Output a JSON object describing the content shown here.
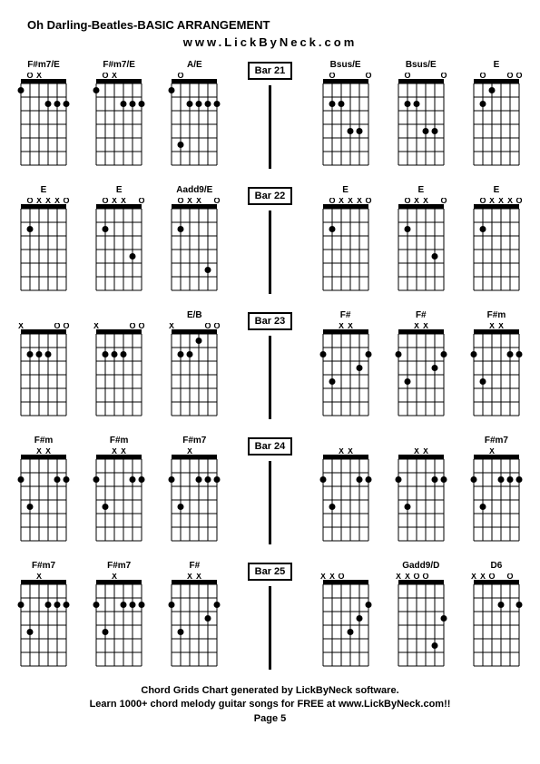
{
  "title": "Oh Darling-Beatles-BASIC ARRANGEMENT",
  "url": "www.LickByNeck.com",
  "footer": {
    "line1": "Chord Grids Chart generated by LickByNeck software.",
    "line2": "Learn 1000+ chord melody guitar songs for FREE at www.LickByNeck.com!!",
    "page": "Page 5"
  },
  "grid_style": {
    "width": 50,
    "height": 90,
    "strings": 6,
    "frets": 6,
    "string_spacing": 10,
    "fret_spacing": 15,
    "nut_thickness": 5,
    "line_color": "#000000",
    "dot_radius": 3.5,
    "marker_fontsize": 9
  },
  "rows": [
    {
      "bar": "Bar 21",
      "left": [
        {
          "name": "F#m7/E",
          "markers": [
            "",
            "O",
            "X",
            "",
            "",
            ""
          ],
          "dots": [
            [
              1,
              6
            ],
            [
              2,
              1
            ],
            [
              2,
              2
            ],
            [
              2,
              3
            ]
          ]
        },
        {
          "name": "F#m7/E",
          "markers": [
            "",
            "O",
            "X",
            "",
            "",
            ""
          ],
          "dots": [
            [
              1,
              6
            ],
            [
              2,
              1
            ],
            [
              2,
              2
            ],
            [
              2,
              3
            ]
          ]
        },
        {
          "name": "A/E",
          "markers": [
            "",
            "O",
            "",
            "",
            "",
            ""
          ],
          "dots": [
            [
              1,
              6
            ],
            [
              2,
              1
            ],
            [
              2,
              2
            ],
            [
              2,
              3
            ],
            [
              2,
              4
            ],
            [
              5,
              5
            ]
          ]
        }
      ],
      "right": [
        {
          "name": "Bsus/E",
          "markers": [
            "",
            "O",
            "",
            "",
            "",
            "O"
          ],
          "dots": [
            [
              2,
              5
            ],
            [
              2,
              4
            ],
            [
              4,
              3
            ],
            [
              4,
              2
            ]
          ]
        },
        {
          "name": "Bsus/E",
          "markers": [
            "",
            "O",
            "",
            "",
            "",
            "O"
          ],
          "dots": [
            [
              2,
              5
            ],
            [
              2,
              4
            ],
            [
              4,
              3
            ],
            [
              4,
              2
            ]
          ]
        },
        {
          "name": "E",
          "markers": [
            "",
            "O",
            "",
            "",
            "O",
            "O"
          ],
          "dots": [
            [
              1,
              4
            ],
            [
              2,
              5
            ]
          ]
        }
      ]
    },
    {
      "bar": "Bar 22",
      "left": [
        {
          "name": "E",
          "markers": [
            "",
            "O",
            "X",
            "X",
            "X",
            "O"
          ],
          "dots": [
            [
              2,
              5
            ]
          ]
        },
        {
          "name": "E",
          "markers": [
            "",
            "O",
            "X",
            "X",
            "",
            "O"
          ],
          "dots": [
            [
              2,
              5
            ],
            [
              4,
              2
            ]
          ]
        },
        {
          "name": "Aadd9/E",
          "markers": [
            "",
            "O",
            "X",
            "X",
            "",
            "O"
          ],
          "dots": [
            [
              2,
              5
            ],
            [
              5,
              2
            ]
          ]
        }
      ],
      "right": [
        {
          "name": "E",
          "markers": [
            "",
            "O",
            "X",
            "X",
            "X",
            "O"
          ],
          "dots": [
            [
              2,
              5
            ]
          ]
        },
        {
          "name": "E",
          "markers": [
            "",
            "O",
            "X",
            "X",
            "",
            "O"
          ],
          "dots": [
            [
              2,
              5
            ],
            [
              4,
              2
            ]
          ]
        },
        {
          "name": "E",
          "markers": [
            "",
            "O",
            "X",
            "X",
            "X",
            "O"
          ],
          "dots": [
            [
              2,
              5
            ]
          ]
        }
      ]
    },
    {
      "bar": "Bar 23",
      "left": [
        {
          "name": "",
          "markers": [
            "X",
            "",
            "",
            "",
            "O",
            "O"
          ],
          "dots": [
            [
              2,
              3
            ],
            [
              2,
              4
            ],
            [
              2,
              5
            ]
          ]
        },
        {
          "name": "",
          "markers": [
            "X",
            "",
            "",
            "",
            "O",
            "O"
          ],
          "dots": [
            [
              2,
              3
            ],
            [
              2,
              4
            ],
            [
              2,
              5
            ]
          ]
        },
        {
          "name": "E/B",
          "markers": [
            "X",
            "",
            "",
            "",
            "O",
            "O"
          ],
          "dots": [
            [
              1,
              3
            ],
            [
              2,
              4
            ],
            [
              2,
              5
            ]
          ]
        }
      ],
      "right": [
        {
          "name": "F#",
          "markers": [
            "",
            "",
            "X",
            "X",
            "",
            ""
          ],
          "dots": [
            [
              2,
              1
            ],
            [
              2,
              6
            ],
            [
              3,
              2
            ],
            [
              4,
              5
            ]
          ]
        },
        {
          "name": "F#",
          "markers": [
            "",
            "",
            "X",
            "X",
            "",
            ""
          ],
          "dots": [
            [
              2,
              1
            ],
            [
              2,
              6
            ],
            [
              3,
              2
            ],
            [
              4,
              5
            ]
          ]
        },
        {
          "name": "F#m",
          "markers": [
            "",
            "",
            "X",
            "X",
            "",
            ""
          ],
          "dots": [
            [
              2,
              1
            ],
            [
              2,
              2
            ],
            [
              2,
              6
            ],
            [
              4,
              5
            ]
          ]
        }
      ]
    },
    {
      "bar": "Bar 24",
      "left": [
        {
          "name": "F#m",
          "markers": [
            "",
            "",
            "X",
            "X",
            "",
            ""
          ],
          "dots": [
            [
              2,
              1
            ],
            [
              2,
              2
            ],
            [
              2,
              6
            ],
            [
              4,
              5
            ]
          ]
        },
        {
          "name": "F#m",
          "markers": [
            "",
            "",
            "X",
            "X",
            "",
            ""
          ],
          "dots": [
            [
              2,
              1
            ],
            [
              2,
              2
            ],
            [
              2,
              6
            ],
            [
              4,
              5
            ]
          ]
        },
        {
          "name": "F#m7",
          "markers": [
            "",
            "",
            "X",
            "",
            "",
            ""
          ],
          "dots": [
            [
              2,
              1
            ],
            [
              2,
              2
            ],
            [
              2,
              3
            ],
            [
              2,
              6
            ],
            [
              4,
              5
            ]
          ]
        }
      ],
      "right": [
        {
          "name": "",
          "markers": [
            "",
            "",
            "X",
            "X",
            "",
            ""
          ],
          "dots": [
            [
              2,
              1
            ],
            [
              2,
              2
            ],
            [
              2,
              6
            ],
            [
              4,
              5
            ]
          ]
        },
        {
          "name": "",
          "markers": [
            "",
            "",
            "X",
            "X",
            "",
            ""
          ],
          "dots": [
            [
              2,
              1
            ],
            [
              2,
              2
            ],
            [
              2,
              6
            ],
            [
              4,
              5
            ]
          ]
        },
        {
          "name": "F#m7",
          "markers": [
            "",
            "",
            "X",
            "",
            "",
            ""
          ],
          "dots": [
            [
              2,
              1
            ],
            [
              2,
              2
            ],
            [
              2,
              3
            ],
            [
              2,
              6
            ],
            [
              4,
              5
            ]
          ]
        }
      ]
    },
    {
      "bar": "Bar 25",
      "left": [
        {
          "name": "F#m7",
          "markers": [
            "",
            "",
            "X",
            "",
            "",
            ""
          ],
          "dots": [
            [
              2,
              1
            ],
            [
              2,
              2
            ],
            [
              2,
              3
            ],
            [
              2,
              6
            ],
            [
              4,
              5
            ]
          ]
        },
        {
          "name": "F#m7",
          "markers": [
            "",
            "",
            "X",
            "",
            "",
            ""
          ],
          "dots": [
            [
              2,
              1
            ],
            [
              2,
              2
            ],
            [
              2,
              3
            ],
            [
              2,
              6
            ],
            [
              4,
              5
            ]
          ]
        },
        {
          "name": "F#",
          "markers": [
            "",
            "",
            "X",
            "X",
            "",
            ""
          ],
          "dots": [
            [
              2,
              1
            ],
            [
              2,
              6
            ],
            [
              3,
              2
            ],
            [
              4,
              5
            ]
          ]
        }
      ],
      "right": [
        {
          "name": "",
          "markers": [
            "X",
            "X",
            "O",
            "",
            "",
            ""
          ],
          "dots": [
            [
              2,
              1
            ],
            [
              3,
              2
            ],
            [
              4,
              3
            ]
          ]
        },
        {
          "name": "Gadd9/D",
          "markers": [
            "X",
            "X",
            "O",
            "O",
            "",
            ""
          ],
          "dots": [
            [
              3,
              1
            ],
            [
              5,
              2
            ]
          ]
        },
        {
          "name": "D6",
          "markers": [
            "X",
            "X",
            "O",
            "",
            "O",
            ""
          ],
          "dots": [
            [
              2,
              1
            ],
            [
              2,
              3
            ]
          ]
        }
      ]
    }
  ]
}
